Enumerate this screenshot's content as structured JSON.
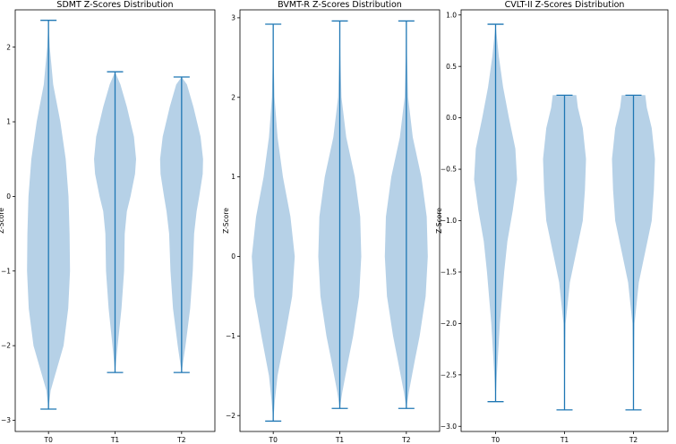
{
  "chart_data": [
    {
      "type": "violin",
      "title": "SDMT Z-Scores Distribution",
      "ylabel": "Z-Score",
      "categories": [
        "T0",
        "T1",
        "T2"
      ],
      "ylim": [
        -3.15,
        2.5
      ],
      "yticks": [
        -3,
        -2,
        -1,
        0,
        1,
        2
      ],
      "ytick_labels": [
        "−3",
        "−2",
        "−1",
        "0",
        "1",
        "2"
      ],
      "violins": [
        {
          "min": -2.85,
          "max": 2.36,
          "density": [
            [
              -2.85,
              0.0
            ],
            [
              -2.6,
              0.1
            ],
            [
              -2.3,
              0.4
            ],
            [
              -2.0,
              0.7
            ],
            [
              -1.5,
              0.92
            ],
            [
              -1.0,
              1.0
            ],
            [
              -0.5,
              0.98
            ],
            [
              0.0,
              0.93
            ],
            [
              0.5,
              0.8
            ],
            [
              1.0,
              0.55
            ],
            [
              1.5,
              0.22
            ],
            [
              2.0,
              0.06
            ],
            [
              2.36,
              0.0
            ]
          ]
        },
        {
          "min": -2.36,
          "max": 1.67,
          "density": [
            [
              -2.36,
              0.0
            ],
            [
              -2.0,
              0.12
            ],
            [
              -1.5,
              0.3
            ],
            [
              -1.0,
              0.42
            ],
            [
              -0.5,
              0.45
            ],
            [
              -0.2,
              0.55
            ],
            [
              0.0,
              0.72
            ],
            [
              0.3,
              0.93
            ],
            [
              0.5,
              0.98
            ],
            [
              0.8,
              0.88
            ],
            [
              1.2,
              0.55
            ],
            [
              1.5,
              0.25
            ],
            [
              1.67,
              0.0
            ]
          ]
        },
        {
          "min": -2.36,
          "max": 1.6,
          "density": [
            [
              -2.36,
              0.0
            ],
            [
              -2.0,
              0.18
            ],
            [
              -1.5,
              0.4
            ],
            [
              -1.0,
              0.52
            ],
            [
              -0.5,
              0.58
            ],
            [
              -0.2,
              0.7
            ],
            [
              0.0,
              0.82
            ],
            [
              0.3,
              0.98
            ],
            [
              0.5,
              1.0
            ],
            [
              0.8,
              0.88
            ],
            [
              1.2,
              0.55
            ],
            [
              1.5,
              0.25
            ],
            [
              1.6,
              0.0
            ]
          ]
        }
      ]
    },
    {
      "type": "violin",
      "title": "BVMT-R Z-Scores Distribution",
      "ylabel": "Z-Score",
      "categories": [
        "T0",
        "T1",
        "T2"
      ],
      "ylim": [
        -2.2,
        3.1
      ],
      "yticks": [
        -2,
        -1,
        0,
        1,
        2,
        3
      ],
      "ytick_labels": [
        "−2",
        "−1",
        "0",
        "1",
        "2",
        "3"
      ],
      "violins": [
        {
          "min": -2.07,
          "max": 2.92,
          "density": [
            [
              -2.07,
              0.0
            ],
            [
              -1.8,
              0.08
            ],
            [
              -1.5,
              0.2
            ],
            [
              -1.0,
              0.55
            ],
            [
              -0.5,
              0.88
            ],
            [
              0.0,
              1.0
            ],
            [
              0.5,
              0.8
            ],
            [
              1.0,
              0.45
            ],
            [
              1.5,
              0.2
            ],
            [
              2.0,
              0.06
            ],
            [
              2.5,
              0.02
            ],
            [
              2.92,
              0.0
            ]
          ]
        },
        {
          "min": -1.91,
          "max": 2.96,
          "density": [
            [
              -1.91,
              0.0
            ],
            [
              -1.7,
              0.12
            ],
            [
              -1.3,
              0.4
            ],
            [
              -1.0,
              0.62
            ],
            [
              -0.5,
              0.9
            ],
            [
              0.0,
              1.0
            ],
            [
              0.5,
              0.95
            ],
            [
              1.0,
              0.7
            ],
            [
              1.5,
              0.3
            ],
            [
              2.0,
              0.08
            ],
            [
              2.5,
              0.03
            ],
            [
              2.96,
              0.0
            ]
          ]
        },
        {
          "min": -1.91,
          "max": 2.96,
          "density": [
            [
              -1.91,
              0.0
            ],
            [
              -1.7,
              0.12
            ],
            [
              -1.3,
              0.4
            ],
            [
              -1.0,
              0.62
            ],
            [
              -0.5,
              0.9
            ],
            [
              0.0,
              1.0
            ],
            [
              0.5,
              0.95
            ],
            [
              1.0,
              0.7
            ],
            [
              1.5,
              0.3
            ],
            [
              2.0,
              0.08
            ],
            [
              2.5,
              0.03
            ],
            [
              2.96,
              0.0
            ]
          ]
        }
      ]
    },
    {
      "type": "violin",
      "title": "CVLT-II Z-Scores Distribution",
      "ylabel": "Z-Score",
      "categories": [
        "T0",
        "T1",
        "T2"
      ],
      "ylim": [
        -3.05,
        1.05
      ],
      "yticks": [
        -3.0,
        -2.5,
        -2.0,
        -1.5,
        -1.0,
        -0.5,
        0.0,
        0.5,
        1.0
      ],
      "ytick_labels": [
        "−3.0",
        "−2.5",
        "−2.0",
        "−1.5",
        "−1.0",
        "−0.5",
        "0.0",
        "0.5",
        "1.0"
      ],
      "violins": [
        {
          "min": -2.76,
          "max": 0.91,
          "density": [
            [
              -2.76,
              0.0
            ],
            [
              -2.5,
              0.06
            ],
            [
              -2.0,
              0.2
            ],
            [
              -1.5,
              0.4
            ],
            [
              -1.2,
              0.55
            ],
            [
              -0.9,
              0.8
            ],
            [
              -0.6,
              1.0
            ],
            [
              -0.3,
              0.92
            ],
            [
              0.0,
              0.62
            ],
            [
              0.3,
              0.35
            ],
            [
              0.6,
              0.15
            ],
            [
              0.91,
              0.0
            ]
          ]
        },
        {
          "min": -2.84,
          "max": 0.22,
          "density": [
            [
              -2.84,
              0.0
            ],
            [
              -2.5,
              0.02
            ],
            [
              -2.0,
              0.05
            ],
            [
              -1.6,
              0.25
            ],
            [
              -1.3,
              0.55
            ],
            [
              -1.0,
              0.85
            ],
            [
              -0.7,
              0.95
            ],
            [
              -0.4,
              1.0
            ],
            [
              -0.1,
              0.85
            ],
            [
              0.1,
              0.62
            ],
            [
              0.22,
              0.55
            ]
          ]
        },
        {
          "min": -2.84,
          "max": 0.22,
          "density": [
            [
              -2.84,
              0.0
            ],
            [
              -2.5,
              0.02
            ],
            [
              -2.0,
              0.05
            ],
            [
              -1.6,
              0.25
            ],
            [
              -1.3,
              0.55
            ],
            [
              -1.0,
              0.85
            ],
            [
              -0.7,
              0.95
            ],
            [
              -0.4,
              1.0
            ],
            [
              -0.1,
              0.85
            ],
            [
              0.1,
              0.62
            ],
            [
              0.22,
              0.55
            ]
          ]
        }
      ]
    }
  ],
  "colors": {
    "violin_fill": "#b2cfe6",
    "line": "#1f77b4",
    "axis": "#000000"
  }
}
